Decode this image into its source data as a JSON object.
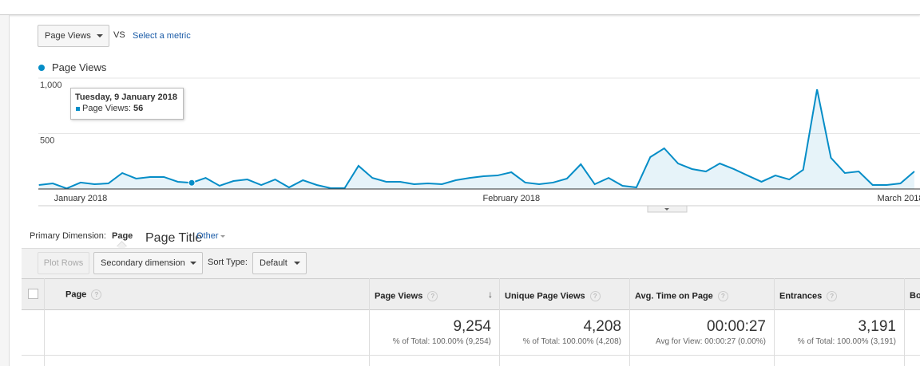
{
  "metric_picker": {
    "selected": "Page Views",
    "vs": "VS",
    "link": "Select a metric"
  },
  "chart_data": {
    "type": "line",
    "categories": [
      null,
      null,
      null,
      "January 2018",
      null,
      null,
      null,
      null,
      null,
      null,
      null,
      null,
      null,
      null,
      null,
      null,
      null,
      null,
      null,
      null,
      null,
      null,
      null,
      null,
      null,
      null,
      null,
      null,
      null,
      null,
      null,
      null,
      null,
      null,
      "February 2018",
      null,
      null,
      null,
      null,
      null,
      null,
      null,
      null,
      null,
      null,
      null,
      null,
      null,
      null,
      null,
      null,
      null,
      null,
      null,
      null,
      null,
      null,
      null,
      null,
      null,
      null,
      null,
      "March 2018",
      null
    ],
    "series": [
      {
        "name": "Page Views",
        "color": "#058dc7",
        "values": [
          36,
          50,
          5,
          58,
          43,
          50,
          144,
          94,
          108,
          108,
          65,
          56,
          100,
          29,
          72,
          86,
          36,
          86,
          14,
          79,
          36,
          7,
          7,
          209,
          100,
          65,
          65,
          43,
          50,
          43,
          79,
          100,
          115,
          122,
          151,
          58,
          43,
          58,
          94,
          223,
          43,
          100,
          29,
          14,
          288,
          367,
          230,
          180,
          158,
          230,
          180,
          122,
          65,
          122,
          86,
          173,
          899,
          281,
          144,
          158,
          36,
          36,
          50,
          158
        ]
      }
    ],
    "ylim": [
      0,
      1000
    ],
    "yticks": [
      500,
      {
        "value": 1000,
        "label": "1,000"
      }
    ],
    "grid": true,
    "tooltip": {
      "date": "Tuesday, 9 January 2018",
      "label": "Page Views:"
    }
  },
  "dimension": {
    "label": "Primary Dimension:",
    "options": [
      "Page",
      "Page Title",
      "Other"
    ]
  },
  "toolbar": {
    "plot_rows": "Plot Rows",
    "secondary": "Secondary dimension",
    "sort_label": "Sort Type:",
    "sort_value": "Default"
  },
  "table": {
    "columns": [
      "Page",
      "Page Views",
      "Unique Page Views",
      "Avg. Time on Page",
      "Entrances",
      "Bo"
    ],
    "totals": [
      {
        "value": "9,254",
        "note": "% of Total: 100.00% (9,254)"
      },
      {
        "value": "4,208",
        "note": "% of Total: 100.00% (4,208)"
      },
      {
        "value": "00:00:27",
        "note": "Avg for View: 00:00:27 (0.00%)"
      },
      {
        "value": "3,191",
        "note": "% of Total: 100.00% (3,191)"
      }
    ]
  }
}
